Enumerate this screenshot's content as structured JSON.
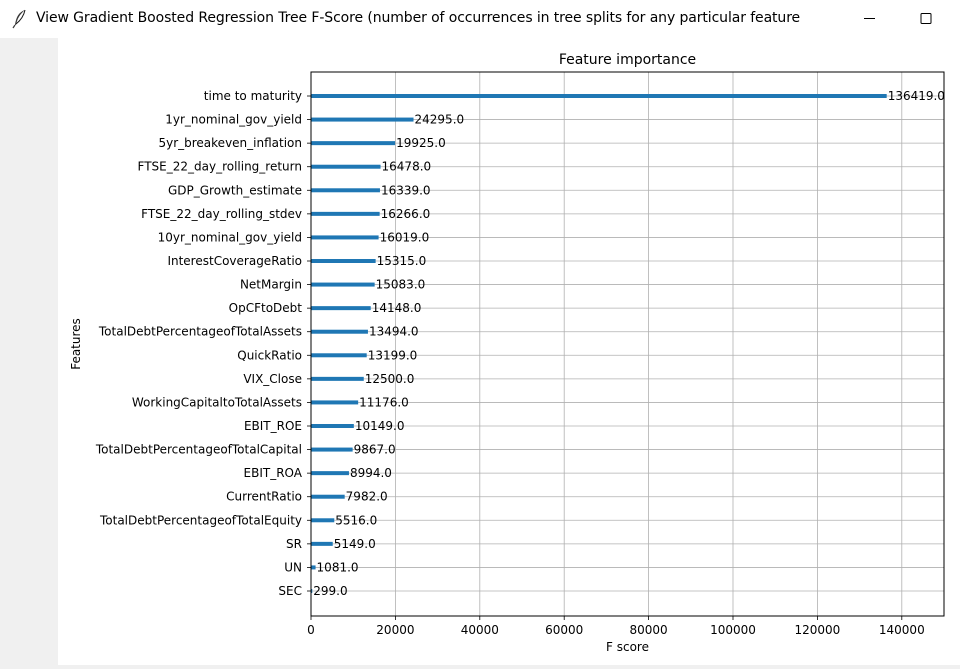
{
  "window": {
    "title": "View Gradient Boosted Regression Tree F-Score (number of occurrences in tree splits for any particular feature",
    "icons": {
      "app": "feather-icon",
      "minimize": "minimize-icon",
      "maximize": "maximize-icon"
    }
  },
  "chart_data": {
    "type": "bar",
    "orientation": "horizontal",
    "title": "Feature importance",
    "xlabel": "F score",
    "ylabel": "Features",
    "xlim": [
      0,
      150000
    ],
    "xticks": [
      0,
      20000,
      40000,
      60000,
      80000,
      100000,
      120000,
      140000
    ],
    "xtick_labels": [
      "0",
      "20000",
      "40000",
      "60000",
      "80000",
      "100000",
      "120000",
      "140000"
    ],
    "grid": true,
    "bar_color": "#1f77b4",
    "categories": [
      "time to maturity",
      "1yr_nominal_gov_yield",
      "5yr_breakeven_inflation",
      "FTSE_22_day_rolling_return",
      "GDP_Growth_estimate",
      "FTSE_22_day_rolling_stdev",
      "10yr_nominal_gov_yield",
      "InterestCoverageRatio",
      "NetMargin",
      "OpCFtoDebt",
      "TotalDebtPercentageofTotalAssets",
      "QuickRatio",
      "VIX_Close",
      "WorkingCapitaltoTotalAssets",
      "EBIT_ROE",
      "TotalDebtPercentageofTotalCapital",
      "EBIT_ROA",
      "CurrentRatio",
      "TotalDebtPercentageofTotalEquity",
      "SR",
      "UN",
      "SEC"
    ],
    "values": [
      136419,
      24295,
      19925,
      16478,
      16339,
      16266,
      16019,
      15315,
      15083,
      14148,
      13494,
      13199,
      12500,
      11176,
      10149,
      9867,
      8994,
      7982,
      5516,
      5149,
      1081,
      299
    ],
    "value_labels": [
      "136419.0",
      "24295.0",
      "19925.0",
      "16478.0",
      "16339.0",
      "16266.0",
      "16019.0",
      "15315.0",
      "15083.0",
      "14148.0",
      "13494.0",
      "13199.0",
      "12500.0",
      "11176.0",
      "10149.0",
      "9867.0",
      "8994.0",
      "7982.0",
      "5516.0",
      "5149.0",
      "1081.0",
      "299.0"
    ]
  }
}
